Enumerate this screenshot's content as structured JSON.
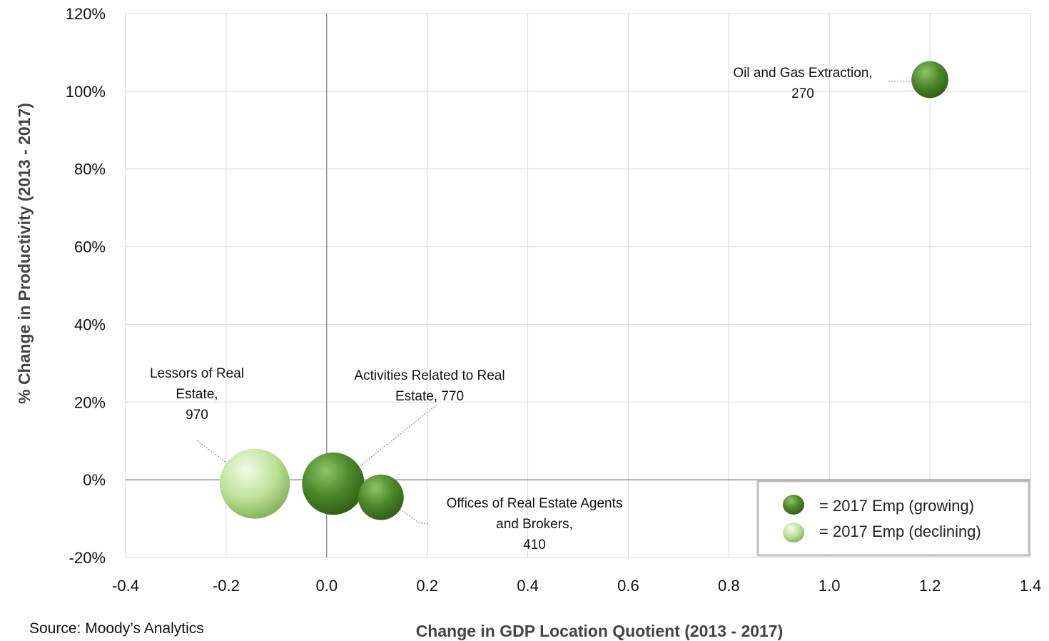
{
  "chart_data": {
    "type": "bubble",
    "xlabel": "Change in GDP Location Quotient (2013 - 2017)",
    "ylabel": "% Change in Productivity (2013 - 2017)",
    "xlim": [
      -0.4,
      1.4
    ],
    "ylim": [
      -20,
      120
    ],
    "x_ticks": [
      -0.4,
      -0.2,
      0.0,
      0.2,
      0.4,
      0.6,
      0.8,
      1.0,
      1.2,
      1.4
    ],
    "x_tick_labels": [
      "-0.4",
      "-0.2",
      "0.0",
      "0.2",
      "0.4",
      "0.6",
      "0.8",
      "1.0",
      "1.2",
      "1.4"
    ],
    "y_ticks": [
      -20,
      0,
      20,
      40,
      60,
      80,
      100,
      120
    ],
    "y_tick_labels": [
      "-20%",
      "0%",
      "20%",
      "40%",
      "60%",
      "80%",
      "100%",
      "120%"
    ],
    "grid": true,
    "source": "Source: Moody’s Analytics",
    "legend": {
      "position": "bottom-right",
      "entries": [
        {
          "label": "= 2017 Emp (growing)",
          "style": "growing"
        },
        {
          "label": "= 2017 Emp (declining)",
          "style": "declining"
        }
      ]
    },
    "colors": {
      "growing": [
        "#8fc46a",
        "#4e8a2a",
        "#2f5a14"
      ],
      "declining": [
        "#f2fbe6",
        "#bfe29a",
        "#7fae57"
      ],
      "gridline": "#d9d9d9",
      "zero_line": "#808080"
    },
    "points": [
      {
        "label_lines": [
          "Oil and Gas Extraction,",
          "270"
        ],
        "x": 1.2,
        "y": 103,
        "size": 270,
        "trend": "growing"
      },
      {
        "label_lines": [
          "Lessors of Real",
          "Estate,",
          "970"
        ],
        "x": -0.143,
        "y": -1,
        "size": 970,
        "trend": "declining"
      },
      {
        "label_lines": [
          "Activities Related to Real",
          "Estate, 770"
        ],
        "x": 0.013,
        "y": -1,
        "size": 770,
        "trend": "growing"
      },
      {
        "label_lines": [
          "Offices of Real Estate Agents",
          "and Brokers,",
          "410"
        ],
        "x": 0.108,
        "y": -4.5,
        "size": 410,
        "trend": "growing"
      }
    ]
  }
}
